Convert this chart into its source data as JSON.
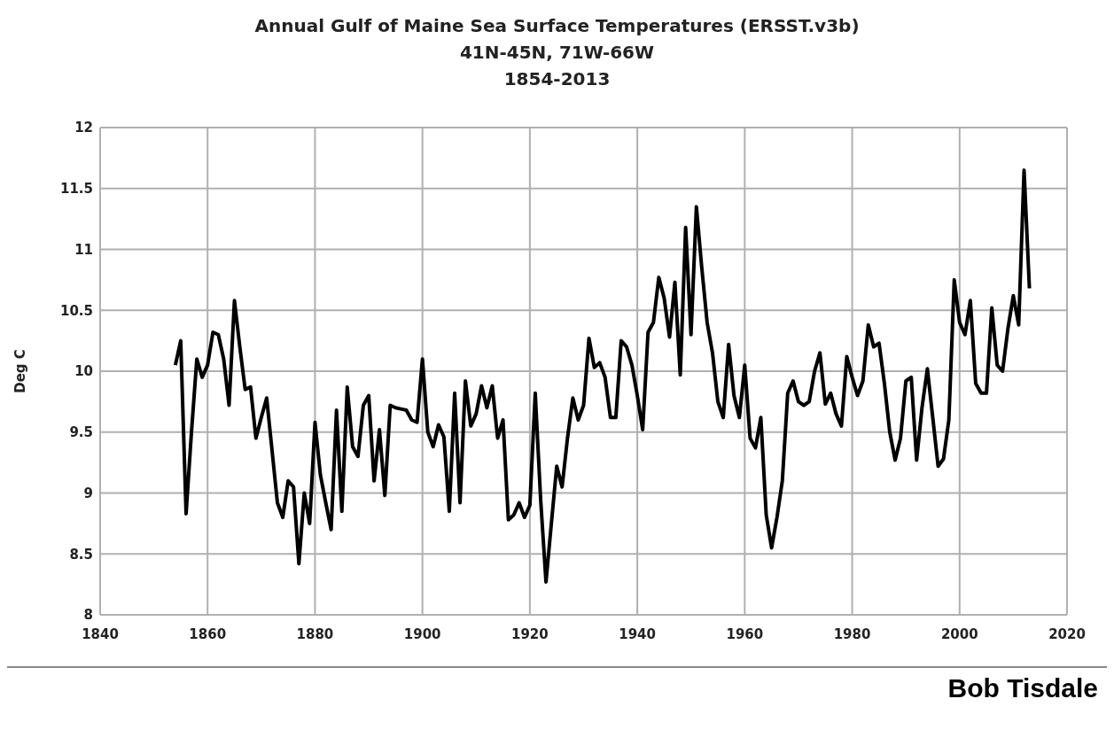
{
  "chart_data": {
    "type": "line",
    "title": "Annual Gulf of Maine Sea Surface Temperatures (ERSST.v3b)",
    "subtitle": "41N-45N, 71W-66W\n1854-2013",
    "ylabel": "Deg C",
    "annotations": [
      "Bob Tisdale"
    ],
    "x": [
      1854,
      1855,
      1856,
      1857,
      1858,
      1859,
      1860,
      1861,
      1862,
      1863,
      1864,
      1865,
      1866,
      1867,
      1868,
      1869,
      1870,
      1871,
      1872,
      1873,
      1874,
      1875,
      1876,
      1877,
      1878,
      1879,
      1880,
      1881,
      1882,
      1883,
      1884,
      1885,
      1886,
      1887,
      1888,
      1889,
      1890,
      1891,
      1892,
      1893,
      1894,
      1895,
      1896,
      1897,
      1898,
      1899,
      1900,
      1901,
      1902,
      1903,
      1904,
      1905,
      1906,
      1907,
      1908,
      1909,
      1910,
      1911,
      1912,
      1913,
      1914,
      1915,
      1916,
      1917,
      1918,
      1919,
      1920,
      1921,
      1922,
      1923,
      1924,
      1925,
      1926,
      1927,
      1928,
      1929,
      1930,
      1931,
      1932,
      1933,
      1934,
      1935,
      1936,
      1937,
      1938,
      1939,
      1940,
      1941,
      1942,
      1943,
      1944,
      1945,
      1946,
      1947,
      1948,
      1949,
      1950,
      1951,
      1952,
      1953,
      1954,
      1955,
      1956,
      1957,
      1958,
      1959,
      1960,
      1961,
      1962,
      1963,
      1964,
      1965,
      1966,
      1967,
      1968,
      1969,
      1970,
      1971,
      1972,
      1973,
      1974,
      1975,
      1976,
      1977,
      1978,
      1979,
      1980,
      1981,
      1982,
      1983,
      1984,
      1985,
      1986,
      1987,
      1988,
      1989,
      1990,
      1991,
      1992,
      1993,
      1994,
      1995,
      1996,
      1997,
      1998,
      1999,
      2000,
      2001,
      2002,
      2003,
      2004,
      2005,
      2006,
      2007,
      2008,
      2009,
      2010,
      2011,
      2012,
      2013
    ],
    "series": [
      {
        "color": "#000000",
        "values": [
          10.05,
          10.25,
          8.83,
          9.5,
          10.1,
          9.95,
          10.05,
          10.32,
          10.3,
          10.1,
          9.72,
          10.58,
          10.2,
          9.85,
          9.87,
          9.45,
          9.62,
          9.78,
          9.35,
          8.92,
          8.8,
          9.1,
          9.05,
          8.42,
          9.0,
          8.75,
          9.58,
          9.15,
          8.92,
          8.7,
          9.68,
          8.85,
          9.87,
          9.38,
          9.3,
          9.72,
          9.8,
          9.1,
          9.52,
          8.98,
          9.72,
          9.7,
          9.69,
          9.68,
          9.6,
          9.58,
          10.1,
          9.5,
          9.38,
          9.56,
          9.46,
          8.85,
          9.82,
          8.92,
          9.92,
          9.55,
          9.65,
          9.88,
          9.7,
          9.88,
          9.45,
          9.6,
          8.78,
          8.82,
          8.92,
          8.8,
          8.9,
          9.82,
          8.95,
          8.27,
          8.75,
          9.22,
          9.05,
          9.45,
          9.78,
          9.6,
          9.72,
          10.27,
          10.03,
          10.07,
          9.95,
          9.62,
          9.62,
          10.25,
          10.2,
          10.05,
          9.8,
          9.52,
          10.32,
          10.4,
          10.77,
          10.6,
          10.28,
          10.73,
          9.97,
          11.18,
          10.3,
          11.35,
          10.85,
          10.4,
          10.15,
          9.75,
          9.62,
          10.22,
          9.8,
          9.62,
          10.05,
          9.45,
          9.37,
          9.62,
          8.82,
          8.55,
          8.8,
          9.1,
          9.82,
          9.92,
          9.75,
          9.72,
          9.75,
          10.0,
          10.15,
          9.73,
          9.82,
          9.65,
          9.55,
          10.12,
          9.95,
          9.8,
          9.92,
          10.38,
          10.2,
          10.23,
          9.9,
          9.5,
          9.27,
          9.45,
          9.92,
          9.95,
          9.27,
          9.7,
          10.02,
          9.62,
          9.22,
          9.28,
          9.6,
          10.75,
          10.4,
          10.3,
          10.58,
          9.9,
          9.82,
          9.82,
          10.52,
          10.05,
          10.0,
          10.35,
          10.62,
          10.38,
          11.65,
          10.68
        ]
      }
    ],
    "xlim": [
      1840,
      2020
    ],
    "xticks": [
      1840,
      1860,
      1880,
      1900,
      1920,
      1940,
      1960,
      1980,
      2000,
      2020
    ],
    "ylim": [
      8,
      12
    ],
    "yticks": [
      8,
      8.5,
      9,
      9.5,
      10,
      10.5,
      11,
      11.5,
      12
    ],
    "grid": true,
    "legend": false,
    "marker": "none",
    "line_style": "solid"
  }
}
